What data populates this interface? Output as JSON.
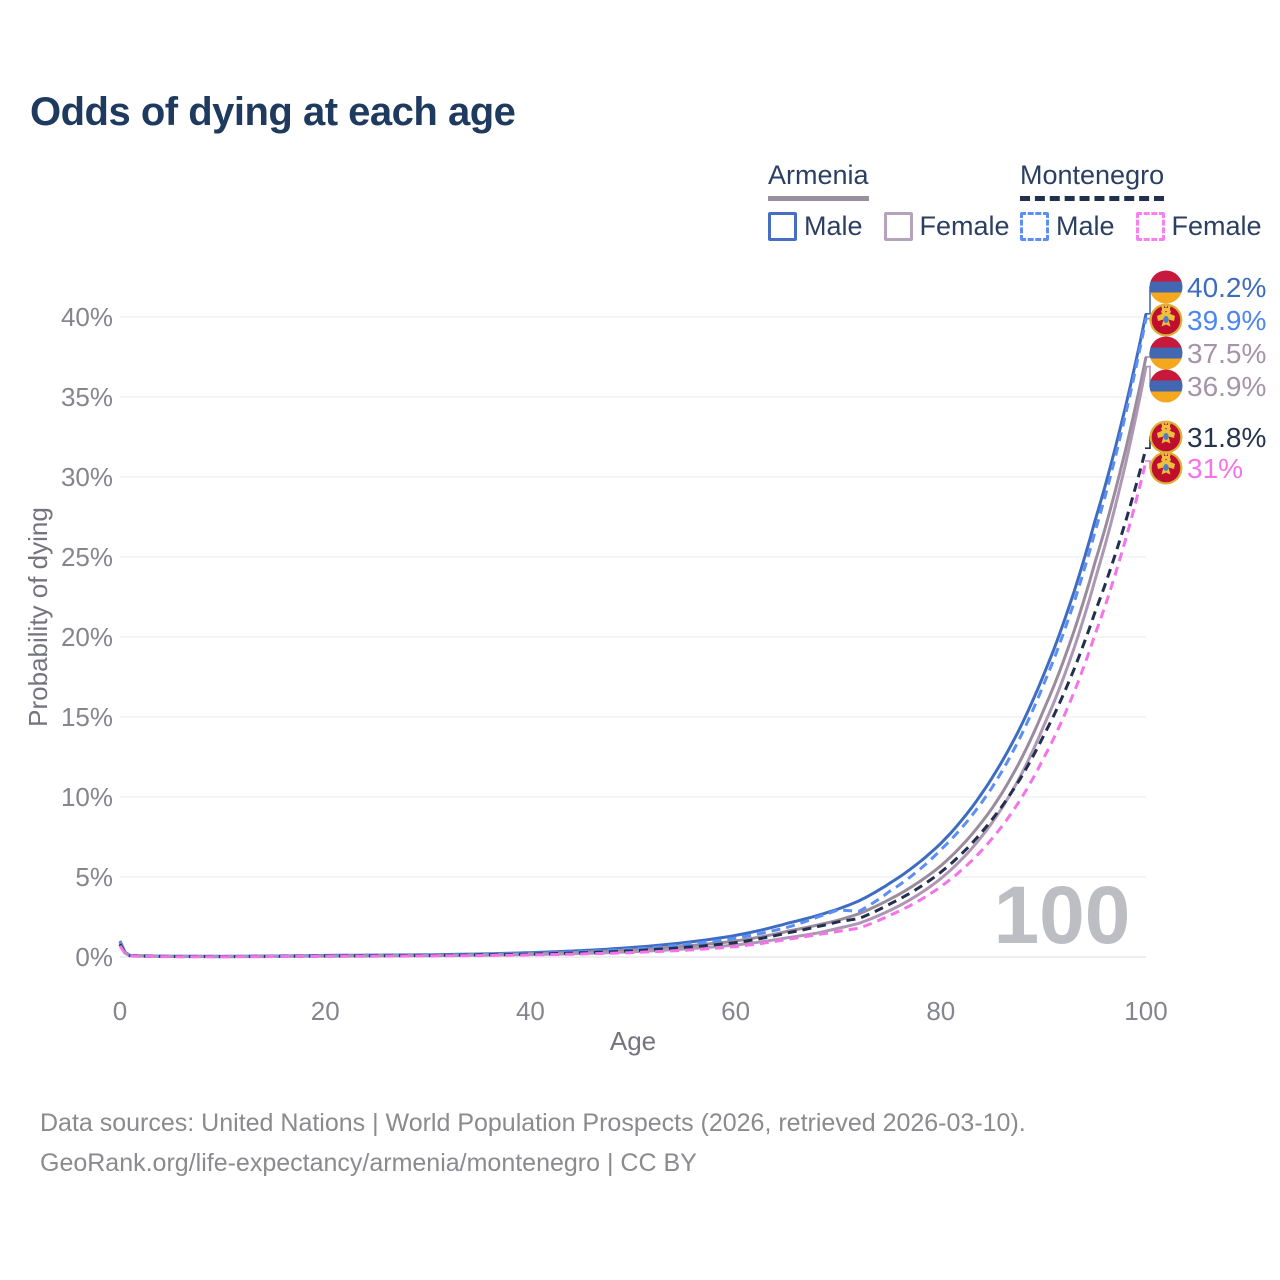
{
  "title": "Odds of dying at each age",
  "legend": {
    "armenia": {
      "label": "Armenia",
      "male_label": "Male",
      "female_label": "Female"
    },
    "montenegro": {
      "label": "Montenegro",
      "male_label": "Male",
      "female_label": "Female"
    }
  },
  "colors": {
    "title_text": "#1e3a5e",
    "legend_text": "#2b3f63",
    "axis_text": "#85858f",
    "axis_title_text": "#74747e",
    "grid_line": "#ededf2",
    "baseline": "#e3e3e9",
    "watermark": "#bdbdc4",
    "footer_text": "#8a8a8f",
    "armenia_underline": "#9a8f9e",
    "montenegro_underline": "#22304e",
    "flag_armenia_red": "#c8183c",
    "flag_armenia_blue": "#4268b3",
    "flag_armenia_orange": "#f5a81e",
    "flag_montenegro_ring": "#d9b43a",
    "flag_montenegro_field": "#c00f2d",
    "flag_montenegro_emblem": "#ecbf3f",
    "flag_montenegro_shield": "#4e7fc4"
  },
  "chart_data": {
    "type": "line",
    "title": "Odds of dying at each age",
    "xlabel": "Age",
    "ylabel": "Probability of dying",
    "xlim": [
      0,
      100
    ],
    "ylim_percent": [
      0,
      42
    ],
    "grid": "horizontal",
    "legend_position": "top-right",
    "hover_age_label": "100",
    "xticks": [
      "0",
      "20",
      "40",
      "60",
      "80",
      "100"
    ],
    "xtick_values": [
      0,
      20,
      40,
      60,
      80,
      100
    ],
    "yticks": [
      "0%",
      "5%",
      "10%",
      "15%",
      "20%",
      "25%",
      "30%",
      "35%",
      "40%"
    ],
    "ytick_values": [
      0,
      5,
      10,
      15,
      20,
      25,
      30,
      35,
      40
    ],
    "x": [
      0,
      1,
      5,
      10,
      15,
      20,
      25,
      30,
      35,
      40,
      45,
      50,
      55,
      60,
      65,
      68,
      70,
      72,
      75,
      80,
      85,
      90,
      95,
      100
    ],
    "series": [
      {
        "name": "Armenia Male",
        "country": "Armenia",
        "sex": "male",
        "style": "solid",
        "color": "#3d6cc0",
        "label_color": "#3d6cc0",
        "flag": "armenia",
        "end_label": "40.2%",
        "end_value_percent": 40.2,
        "values": [
          1.0,
          0.09,
          0.05,
          0.04,
          0.06,
          0.1,
          0.12,
          0.14,
          0.19,
          0.27,
          0.4,
          0.6,
          0.9,
          1.35,
          2.1,
          2.6,
          3.0,
          3.5,
          4.6,
          7.1,
          11.2,
          17.6,
          27.2,
          40.2
        ]
      },
      {
        "name": "Montenegro Male",
        "country": "Montenegro",
        "sex": "male",
        "style": "dashed",
        "color": "#5b8ff5",
        "label_color": "#4c86ee",
        "flag": "montenegro",
        "end_label": "39.9%",
        "end_value_percent": 39.9,
        "values": [
          0.9,
          0.08,
          0.04,
          0.03,
          0.05,
          0.08,
          0.1,
          0.12,
          0.16,
          0.22,
          0.33,
          0.5,
          0.78,
          1.18,
          1.85,
          2.5,
          2.95,
          2.85,
          4.1,
          6.7,
          10.6,
          17.0,
          26.5,
          39.9
        ]
      },
      {
        "name": "Armenia",
        "country": "Armenia",
        "sex": "both",
        "style": "solid",
        "color": "#9a8b9d",
        "label_color": "#a693aa",
        "flag": "armenia",
        "end_label": "37.5%",
        "end_value_percent": 37.5,
        "values": [
          0.95,
          0.08,
          0.04,
          0.03,
          0.05,
          0.08,
          0.09,
          0.11,
          0.15,
          0.21,
          0.3,
          0.45,
          0.68,
          1.0,
          1.6,
          2.0,
          2.3,
          2.7,
          3.6,
          5.7,
          9.3,
          15.4,
          24.6,
          37.5
        ]
      },
      {
        "name": "Armenia Female",
        "country": "Armenia",
        "sex": "female",
        "style": "solid",
        "color": "#ad97b4",
        "label_color": "#a693aa",
        "flag": "armenia",
        "end_label": "36.9%",
        "end_value_percent": 36.9,
        "values": [
          0.85,
          0.07,
          0.03,
          0.02,
          0.03,
          0.05,
          0.06,
          0.08,
          0.11,
          0.15,
          0.22,
          0.33,
          0.5,
          0.75,
          1.2,
          1.5,
          1.8,
          2.1,
          2.9,
          4.9,
          8.4,
          14.4,
          23.5,
          36.9
        ]
      },
      {
        "name": "Montenegro",
        "country": "Montenegro",
        "sex": "both",
        "style": "dashed",
        "color": "#22304e",
        "label_color": "#26334f",
        "flag": "montenegro",
        "end_label": "31.8%",
        "end_value_percent": 31.8,
        "values": [
          0.8,
          0.07,
          0.03,
          0.03,
          0.04,
          0.06,
          0.08,
          0.09,
          0.13,
          0.18,
          0.26,
          0.39,
          0.6,
          0.9,
          1.5,
          1.9,
          2.2,
          2.4,
          3.3,
          5.3,
          8.6,
          13.8,
          21.5,
          31.8
        ]
      },
      {
        "name": "Montenegro Female",
        "country": "Montenegro",
        "sex": "female",
        "style": "dashed",
        "color": "#f473ea",
        "label_color": "#f473ea",
        "flag": "montenegro",
        "end_label": "31%",
        "end_value_percent": 31.0,
        "values": [
          0.7,
          0.06,
          0.02,
          0.02,
          0.03,
          0.04,
          0.05,
          0.07,
          0.09,
          0.13,
          0.19,
          0.28,
          0.42,
          0.65,
          1.1,
          1.4,
          1.6,
          1.8,
          2.6,
          4.4,
          7.4,
          12.4,
          20.1,
          31.0
        ]
      }
    ]
  },
  "footer": {
    "line1": "Data sources: United Nations | World Population Prospects (2026, retrieved 2026-03-10).",
    "line2": "GeoRank.org/life-expectancy/armenia/montenegro | CC BY"
  }
}
